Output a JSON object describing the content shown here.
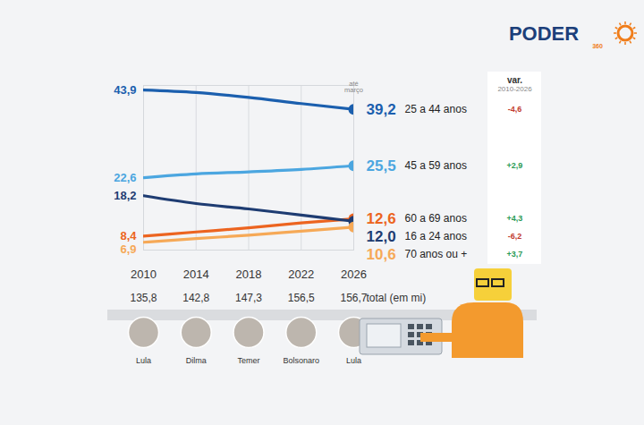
{
  "chart_data": {
    "type": "line",
    "x": [
      2010,
      2014,
      2018,
      2022,
      2026
    ],
    "xlim": [
      2010,
      2026
    ],
    "xticks": [
      2010,
      2014,
      2018,
      2022,
      2026
    ],
    "ylim": [
      5,
      45
    ],
    "yticks": [],
    "tick_labels": "x",
    "grid": "x",
    "data_labels": true,
    "x_note": "até março",
    "series": [
      {
        "name": "25 a 44 anos",
        "color": "#1b5fae",
        "values": [
          43.9,
          43.3,
          42.1,
          40.6,
          39.2
        ],
        "value_labels": [
          "43,9",
          null,
          null,
          null,
          "39,2"
        ],
        "change": -4.6,
        "change_label": "-4,6"
      },
      {
        "name": "45 a 59 anos",
        "color": "#4ba6e0",
        "values": [
          22.6,
          23.5,
          24.0,
          24.6,
          25.5
        ],
        "value_labels": [
          "22,6",
          null,
          null,
          null,
          "25,5"
        ],
        "change": 2.9,
        "change_label": "+2,9"
      },
      {
        "name": "60 a 69 anos",
        "color": "#ec6420",
        "values": [
          8.4,
          9.4,
          10.4,
          11.6,
          12.6
        ],
        "value_labels": [
          "8,4",
          null,
          null,
          null,
          "12,6"
        ],
        "change": 4.3,
        "change_label": "+4,3"
      },
      {
        "name": "16 a 24 anos",
        "color": "#1e3c72",
        "values": [
          18.2,
          16.3,
          15.0,
          13.5,
          12.0
        ],
        "value_labels": [
          "18,2",
          null,
          null,
          null,
          "12,0"
        ],
        "change": -6.2,
        "change_label": "-6,2"
      },
      {
        "name": "70 anos ou +",
        "color": "#f6a957",
        "values": [
          6.9,
          7.8,
          8.6,
          9.6,
          10.6
        ],
        "value_labels": [
          "6,9",
          null,
          null,
          null,
          "10,6"
        ],
        "change": 3.7,
        "change_label": "+3,7"
      }
    ],
    "change_title": "var.",
    "change_subtitle": "2010-2026",
    "totals": {
      "label": "total (em mi)",
      "values": [
        135.8,
        142.8,
        147.3,
        156.5,
        156.7
      ],
      "value_labels": [
        "135,8",
        "142,8",
        "147,3",
        "156,5",
        "156,7"
      ]
    },
    "presidents": [
      "Lula",
      "Dilma",
      "Temer",
      "Bolsonaro",
      "Lula"
    ],
    "logo": {
      "text": "PODER",
      "sub": "360"
    }
  }
}
